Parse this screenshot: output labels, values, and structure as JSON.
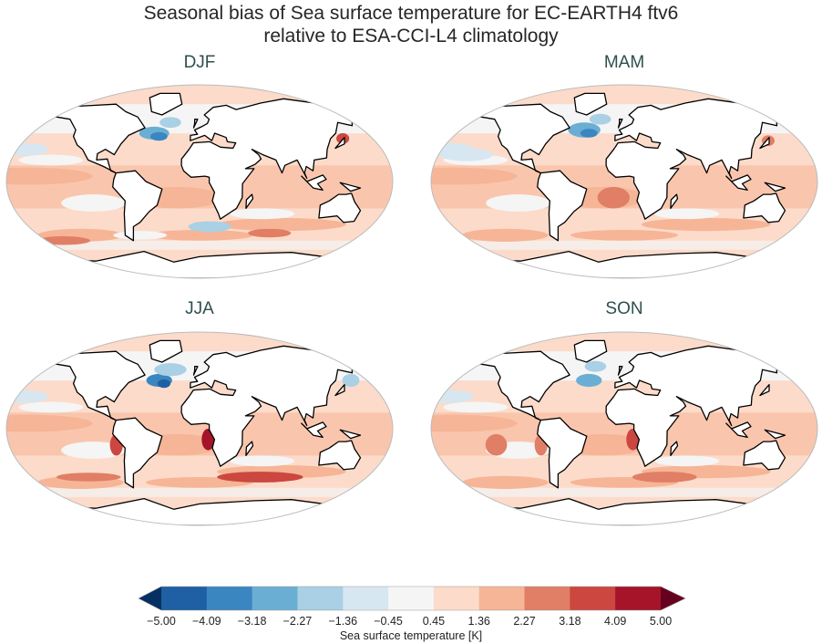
{
  "title_line1": "Seasonal bias of Sea surface temperature for EC-EARTH4 ftv6",
  "title_line2": "relative to ESA-CCI-L4 climatology",
  "panels": [
    {
      "season": "DJF"
    },
    {
      "season": "MAM"
    },
    {
      "season": "JJA"
    },
    {
      "season": "SON"
    }
  ],
  "colorbar": {
    "label": "Sea surface temperature [K]",
    "ticks": [
      "−5.00",
      "−4.09",
      "−3.18",
      "−2.27",
      "−1.36",
      "−0.45",
      "0.45",
      "1.36",
      "2.27",
      "3.18",
      "4.09",
      "5.00"
    ],
    "colors": [
      "#1f5fa3",
      "#3a86c0",
      "#6aaed3",
      "#a9d0e4",
      "#d7e7f1",
      "#f5f5f5",
      "#fcdbca",
      "#f6b596",
      "#e07f65",
      "#cb4740",
      "#a51429"
    ],
    "under_color": "#053061",
    "over_color": "#67001f",
    "extend": "both"
  },
  "land_color": "#ffffff",
  "coastline_color": "#000000"
}
